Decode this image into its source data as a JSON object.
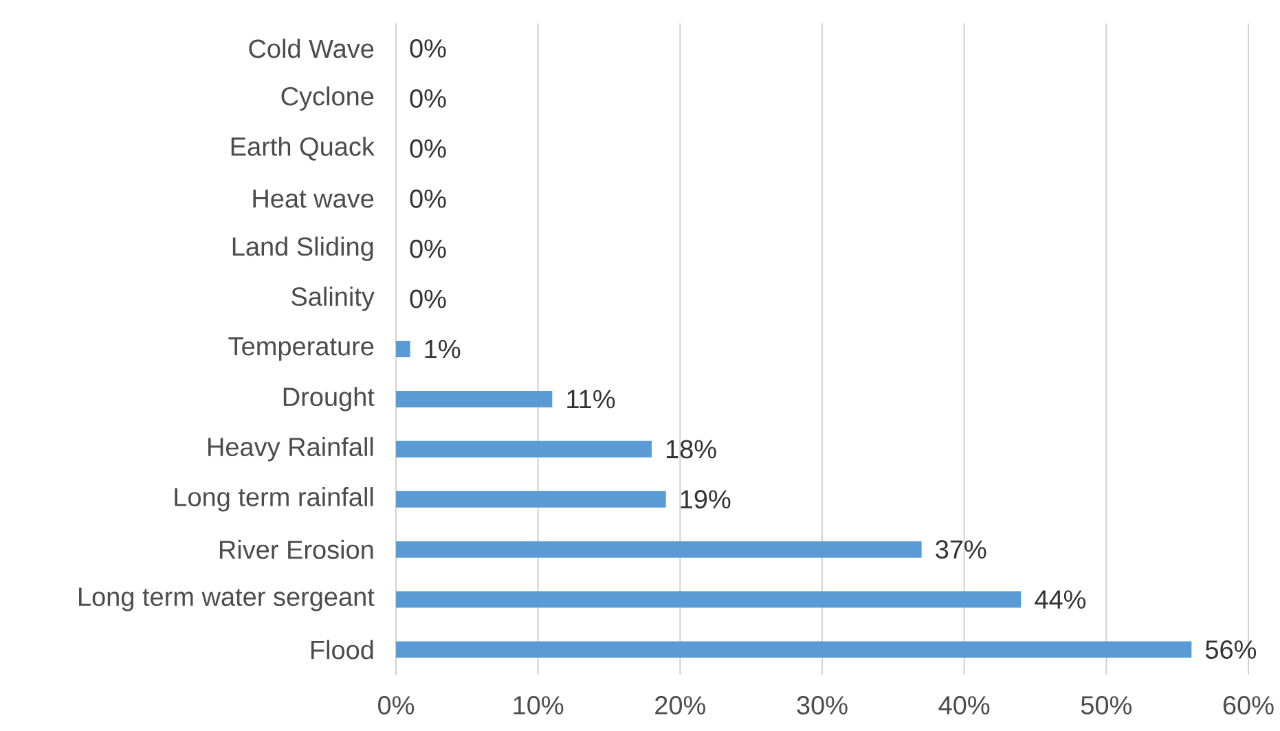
{
  "chart_data": {
    "type": "bar",
    "orientation": "horizontal",
    "categories": [
      "Cold Wave",
      "Cyclone",
      "Earth Quack",
      "Heat wave",
      "Land Sliding",
      "Salinity",
      "Temperature",
      "Drought",
      "Heavy Rainfall",
      "Long term rainfall",
      "River Erosion",
      "Long term water sergeant",
      "Flood"
    ],
    "values": [
      0,
      0,
      0,
      0,
      0,
      0,
      1,
      11,
      18,
      19,
      37,
      44,
      56
    ],
    "value_labels": [
      "0%",
      "0%",
      "0%",
      "0%",
      "0%",
      "0%",
      "1%",
      "11%",
      "18%",
      "19%",
      "37%",
      "44%",
      "56%"
    ],
    "color": "#5b9bd5",
    "xlim": [
      0,
      60
    ],
    "xticks": [
      {
        "value": 0,
        "label": "0%"
      },
      {
        "value": 10,
        "label": "10%"
      },
      {
        "value": 20,
        "label": "20%"
      },
      {
        "value": 30,
        "label": "30%"
      },
      {
        "value": 40,
        "label": "40%"
      },
      {
        "value": 50,
        "label": "50%"
      },
      {
        "value": 60,
        "label": "60%"
      }
    ],
    "grid": "x"
  }
}
